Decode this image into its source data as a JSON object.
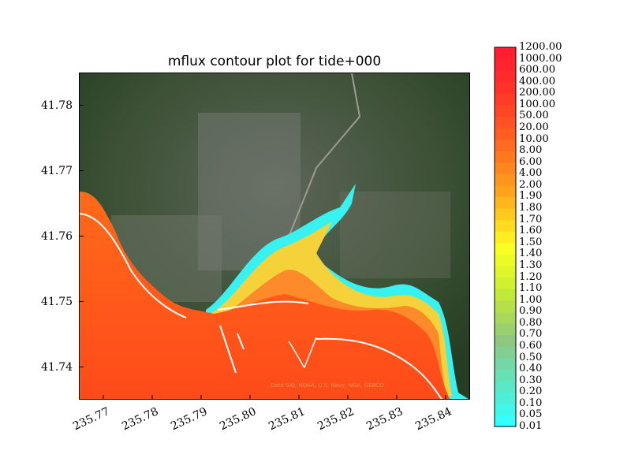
{
  "chart_data": {
    "type": "heatmap",
    "title": "mflux contour plot for tide+000",
    "xlabel": "",
    "ylabel": "",
    "xlim": [
      235.765,
      235.845
    ],
    "ylim": [
      41.735,
      41.785
    ],
    "x_ticks": [
      "235.77",
      "235.78",
      "235.79",
      "235.80",
      "235.81",
      "235.82",
      "235.83",
      "235.84"
    ],
    "y_ticks": [
      "41.74",
      "41.75",
      "41.76",
      "41.77",
      "41.78"
    ],
    "colorbar": {
      "levels": [
        "0.01",
        "0.05",
        "0.10",
        "0.20",
        "0.30",
        "0.40",
        "0.50",
        "0.60",
        "0.70",
        "0.80",
        "0.90",
        "1.00",
        "1.10",
        "1.20",
        "1.30",
        "1.40",
        "1.50",
        "1.60",
        "1.70",
        "1.80",
        "1.90",
        "2.00",
        "4.00",
        "6.00",
        "8.00",
        "10.00",
        "20.00",
        "50.00",
        "100.00",
        "200.00",
        "400.00",
        "600.00",
        "1000.00",
        "1200.00"
      ],
      "colors": [
        "#33ffff",
        "#40f7ec",
        "#4defda",
        "#5ae8c8",
        "#67e0b6",
        "#74d8a4",
        "#81d092",
        "#8ec880",
        "#9bd06e",
        "#a8d85c",
        "#b5e04a",
        "#c2e838",
        "#d0f030",
        "#def62a",
        "#ecfa26",
        "#f8ff22",
        "#ffef20",
        "#ffdc1f",
        "#ffc91e",
        "#ffb61d",
        "#ffa31c",
        "#ff951c",
        "#ff871d",
        "#ff791e",
        "#ff6b20",
        "#ff5d22",
        "#ff5224",
        "#ff4726",
        "#ff3c28",
        "#ff322a",
        "#ff2a2c",
        "#ff242e",
        "#ff1f30"
      ]
    },
    "background": "satellite imagery",
    "attribution": "Data SIO, NOAA, U.S. Navy, NGA, GEBCO"
  }
}
